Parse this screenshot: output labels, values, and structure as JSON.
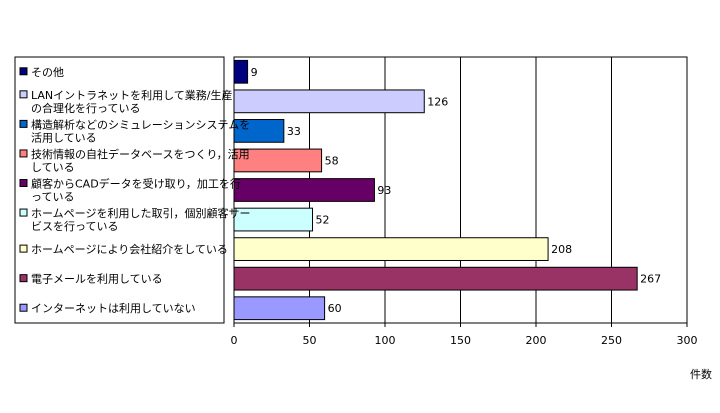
{
  "chart_data": {
    "type": "bar",
    "orientation": "horizontal",
    "title": "",
    "xlabel": "件数",
    "ylabel": "",
    "xlim": [
      0,
      300
    ],
    "x_ticks": [
      "0",
      "50",
      "100",
      "150",
      "200",
      "250",
      "300"
    ],
    "grid": true,
    "legend": "left",
    "series": [
      {
        "name": "その他",
        "value": 9,
        "color": "#000080"
      },
      {
        "name": "LANイントラネットを利用して業務/生産の合理化を行っている",
        "value": 126,
        "color": "#ccccff"
      },
      {
        "name": "構造解析などのシミュレーションシステムを活用している",
        "value": 33,
        "color": "#0066cc"
      },
      {
        "name": "技術情報の自社データベースをつくり，活用している",
        "value": 58,
        "color": "#ff8080"
      },
      {
        "name": "顧客からCADデータを受け取り，加工を行っている",
        "value": 93,
        "color": "#660066"
      },
      {
        "name": "ホームページを利用した取引，個別顧客サービスを行っている",
        "value": 52,
        "color": "#ccffff"
      },
      {
        "name": "ホームページにより会社紹介をしている",
        "value": 208,
        "color": "#ffffcc"
      },
      {
        "name": "電子メールを利用している",
        "value": 267,
        "color": "#993366"
      },
      {
        "name": "インターネットは利用していない",
        "value": 60,
        "color": "#9999ff"
      }
    ]
  }
}
